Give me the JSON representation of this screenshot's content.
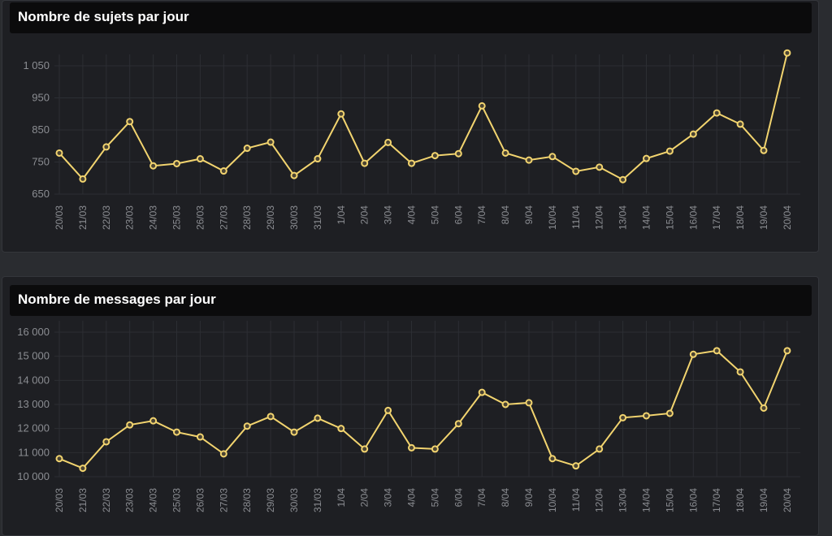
{
  "panels": [
    {
      "title": "Nombre de sujets par jour"
    },
    {
      "title": "Nombre de messages par jour"
    }
  ],
  "colors": {
    "background": "#2a2c30",
    "panel": "#1e1f23",
    "header": "#0b0b0c",
    "line": "#f2d46f",
    "grid": "#2c2e33",
    "tick": "#8b8d92"
  },
  "chart_data": [
    {
      "type": "line",
      "title": "Nombre de sujets par jour",
      "xlabel": "",
      "ylabel": "",
      "categories": [
        "20/03",
        "21/03",
        "22/03",
        "23/03",
        "24/03",
        "25/03",
        "26/03",
        "27/03",
        "28/03",
        "29/03",
        "30/03",
        "31/03",
        "1/04",
        "2/04",
        "3/04",
        "4/04",
        "5/04",
        "6/04",
        "7/04",
        "8/04",
        "9/04",
        "10/04",
        "11/04",
        "12/04",
        "13/04",
        "14/04",
        "15/04",
        "16/04",
        "17/04",
        "18/04",
        "19/04",
        "20/04"
      ],
      "y_ticks": [
        650,
        750,
        850,
        950,
        1050
      ],
      "y_tick_labels": [
        "650",
        "750",
        "850",
        "950",
        "1 050"
      ],
      "ylim": [
        650,
        1050
      ],
      "grid": true,
      "series": [
        {
          "values": [
            778,
            697,
            797,
            876,
            738,
            745,
            760,
            722,
            793,
            812,
            708,
            760,
            900,
            746,
            811,
            746,
            770,
            776,
            925,
            778,
            756,
            767,
            721,
            734,
            695,
            761,
            784,
            837,
            903,
            868,
            786,
            1090
          ]
        }
      ]
    },
    {
      "type": "line",
      "title": "Nombre de messages par jour",
      "xlabel": "",
      "ylabel": "",
      "categories": [
        "20/03",
        "21/03",
        "22/03",
        "23/03",
        "24/03",
        "25/03",
        "26/03",
        "27/03",
        "28/03",
        "29/03",
        "30/03",
        "31/03",
        "1/04",
        "2/04",
        "3/04",
        "4/04",
        "5/04",
        "6/04",
        "7/04",
        "8/04",
        "9/04",
        "10/04",
        "11/04",
        "12/04",
        "13/04",
        "14/04",
        "15/04",
        "16/04",
        "17/04",
        "18/04",
        "19/04",
        "20/04"
      ],
      "y_ticks": [
        10000,
        11000,
        12000,
        13000,
        14000,
        15000,
        16000
      ],
      "y_tick_labels": [
        "10 000",
        "11 000",
        "12 000",
        "13 000",
        "14 000",
        "15 000",
        "16 000"
      ],
      "ylim": [
        10000,
        16000
      ],
      "grid": true,
      "series": [
        {
          "values": [
            10750,
            10350,
            11450,
            12150,
            12320,
            11850,
            11650,
            10950,
            12100,
            12500,
            11850,
            12430,
            12000,
            11150,
            12750,
            11200,
            11150,
            12200,
            13500,
            13000,
            13070,
            10750,
            10450,
            11150,
            12450,
            12530,
            12630,
            15080,
            15230,
            14350,
            12850,
            15230
          ]
        }
      ]
    }
  ]
}
